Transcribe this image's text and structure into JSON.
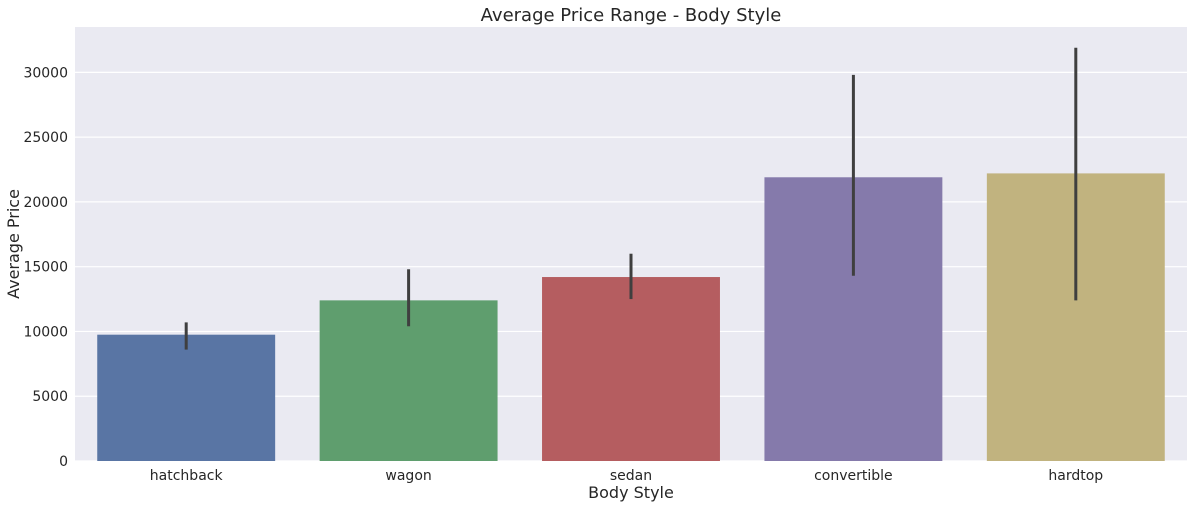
{
  "chart_data": {
    "type": "bar",
    "title": "Average Price Range - Body Style",
    "xlabel": "Body Style",
    "ylabel": "Average Price",
    "categories": [
      "hatchback",
      "wagon",
      "sedan",
      "convertible",
      "hardtop"
    ],
    "values": [
      9750,
      12400,
      14200,
      21900,
      22200
    ],
    "error_low": [
      8600,
      10400,
      12500,
      14300,
      12400
    ],
    "error_high": [
      10700,
      14800,
      16000,
      29800,
      31900
    ],
    "ylim": [
      0,
      33500
    ],
    "yticks": [
      0,
      5000,
      10000,
      15000,
      20000,
      25000,
      30000
    ],
    "ytick_labels": [
      "0",
      "5000",
      "10000",
      "15000",
      "20000",
      "25000",
      "30000"
    ],
    "grid": true,
    "colors": [
      "#5975a4",
      "#5f9e6e",
      "#b55d60",
      "#857aab",
      "#c1b37f"
    ],
    "background_color": "#eaeaf2",
    "error_bar_color": "#3f3f3f"
  }
}
